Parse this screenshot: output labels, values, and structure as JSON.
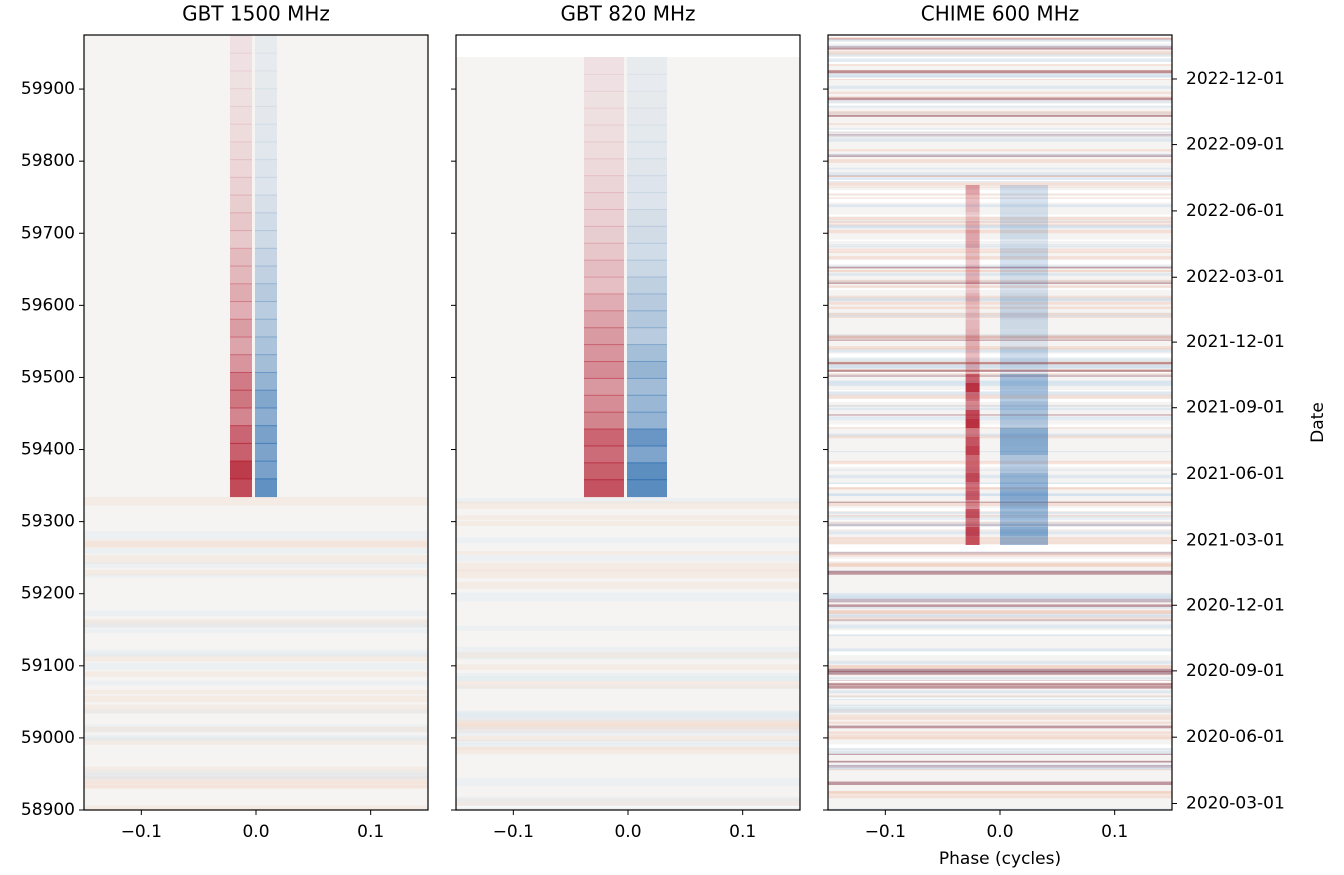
{
  "chart_data": [
    {
      "type": "heatmap",
      "title": "GBT 1500 MHz",
      "xlim": [
        -0.15,
        0.15
      ],
      "xticks": [
        {
          "value": -0.1,
          "label": "−0.1"
        },
        {
          "value": 0,
          "label": "0.0"
        },
        0.1
      ],
      "ylim": [
        58900,
        59975
      ],
      "yticks": [
        58900,
        59000,
        59100,
        59200,
        59300,
        59400,
        59500,
        59600,
        59700,
        59800,
        59900
      ]
    },
    {
      "type": "heatmap",
      "title": "GBT 820 MHz",
      "xlim": [
        -0.15,
        0.15
      ],
      "xticks": [
        {
          "value": -0.1,
          "label": "−0.1"
        },
        {
          "value": 0,
          "label": "0.0"
        },
        0.1
      ],
      "ylim": [
        58900,
        59975
      ]
    },
    {
      "type": "heatmap",
      "title": "CHIME 600 MHz",
      "xlabel": "Phase (cycles)",
      "y2label": "Date",
      "xlim": [
        -0.15,
        0.15
      ],
      "xticks": [
        {
          "value": -0.1,
          "label": "−0.1"
        },
        {
          "value": 0,
          "label": "0.0"
        },
        0.1
      ],
      "ylim": [
        58900,
        59975
      ],
      "y2ticks": [
        {
          "value": 58909,
          "label": "2020-03-01"
        },
        {
          "value": 59001,
          "label": "2020-06-01"
        },
        {
          "value": 59093,
          "label": "2020-09-01"
        },
        {
          "value": 59184,
          "label": "2020-12-01"
        },
        {
          "value": 59274,
          "label": "2021-03-01"
        },
        {
          "value": 59366,
          "label": "2021-06-01"
        },
        {
          "value": 59458,
          "label": "2021-09-01"
        },
        {
          "value": 59549,
          "label": "2021-12-01"
        },
        {
          "value": 59639,
          "label": "2022-03-01"
        },
        {
          "value": 59731,
          "label": "2022-06-01"
        },
        {
          "value": 59823,
          "label": "2022-09-01"
        },
        {
          "value": 59914,
          "label": "2022-12-01"
        }
      ]
    }
  ]
}
